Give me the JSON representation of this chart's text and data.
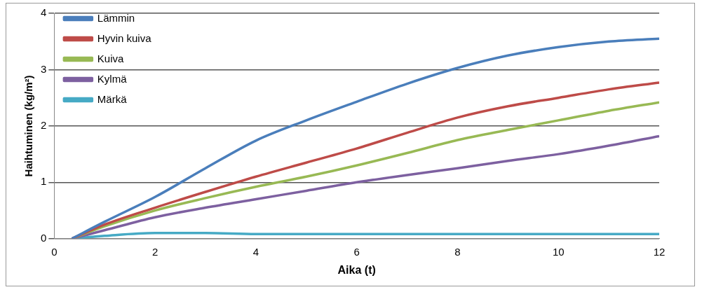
{
  "chart_data": {
    "type": "line",
    "xlabel": "Aika (t)",
    "ylabel": "Haihtuminen (kg/m²)",
    "x": [
      0.35,
      1,
      2,
      3,
      4,
      5,
      6,
      7,
      8,
      9,
      10,
      11,
      12
    ],
    "xlim": [
      0,
      12
    ],
    "xticks": [
      0,
      2,
      4,
      6,
      8,
      10,
      12
    ],
    "ylim": [
      0,
      4
    ],
    "yticks": [
      0,
      1,
      2,
      3,
      4
    ],
    "grid": "y",
    "legend": "top left",
    "marker": "none",
    "line_style": "solid",
    "series": [
      {
        "name": "Lämmin",
        "color": "#4a7ebb",
        "values": [
          0,
          0.3,
          0.74,
          1.25,
          1.74,
          2.1,
          2.43,
          2.75,
          3.03,
          3.25,
          3.4,
          3.5,
          3.55
        ]
      },
      {
        "name": "Hyvin kuiva",
        "color": "#be4b48",
        "values": [
          0,
          0.25,
          0.55,
          0.83,
          1.1,
          1.35,
          1.6,
          1.88,
          2.15,
          2.35,
          2.5,
          2.65,
          2.77
        ]
      },
      {
        "name": "Kuiva",
        "color": "#98b954",
        "values": [
          0,
          0.22,
          0.5,
          0.72,
          0.92,
          1.1,
          1.3,
          1.52,
          1.75,
          1.93,
          2.1,
          2.27,
          2.42
        ]
      },
      {
        "name": "Kylmä",
        "color": "#7d60a0",
        "values": [
          0,
          0.15,
          0.38,
          0.55,
          0.7,
          0.85,
          1.0,
          1.13,
          1.25,
          1.38,
          1.5,
          1.65,
          1.82
        ]
      },
      {
        "name": "Märkä",
        "color": "#46aac5",
        "values": [
          0,
          0.05,
          0.1,
          0.1,
          0.08,
          0.08,
          0.08,
          0.08,
          0.08,
          0.08,
          0.08,
          0.08,
          0.08
        ]
      }
    ]
  }
}
